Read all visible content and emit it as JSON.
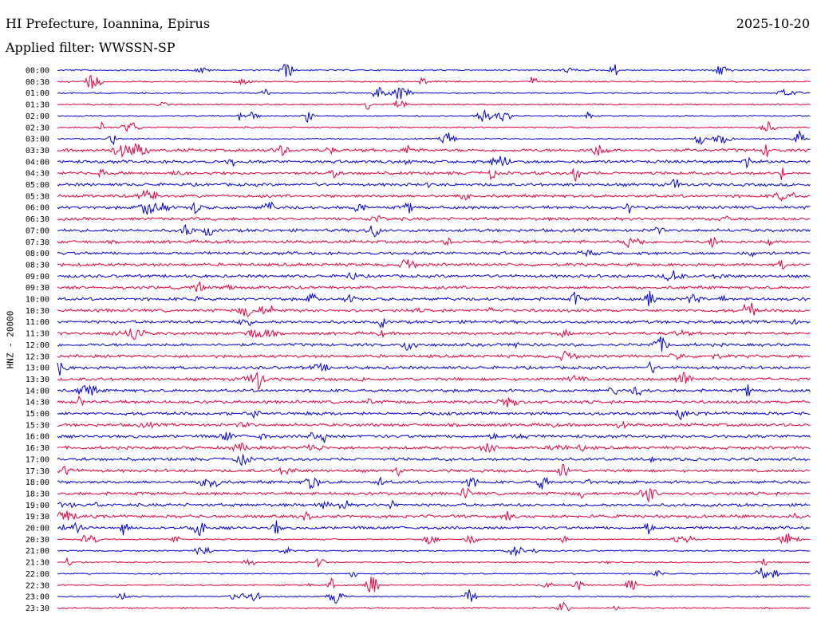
{
  "header": {
    "station": "HI Prefecture, Ioannina, Epirus",
    "date": "2025-10-20",
    "filter": "Applied filter: WWSSN-SP"
  },
  "chart_data": {
    "type": "line",
    "ylabel": "HNZ - 20000",
    "row_labels": [
      "00:00",
      "00:30",
      "01:00",
      "01:30",
      "02:00",
      "02:30",
      "03:00",
      "03:30",
      "04:00",
      "04:30",
      "05:00",
      "05:30",
      "06:00",
      "06:30",
      "07:00",
      "07:30",
      "08:00",
      "08:30",
      "09:00",
      "09:30",
      "10:00",
      "10:30",
      "11:00",
      "11:30",
      "12:00",
      "12:30",
      "13:00",
      "13:30",
      "14:00",
      "14:30",
      "15:00",
      "15:30",
      "16:00",
      "16:30",
      "17:00",
      "17:30",
      "18:00",
      "18:30",
      "19:00",
      "19:30",
      "20:00",
      "20:30",
      "21:00",
      "21:30",
      "22:00",
      "22:30",
      "23:00",
      "23:30"
    ],
    "trace_colors": [
      "#0000dd",
      "#e8003c"
    ],
    "grid": false
  }
}
